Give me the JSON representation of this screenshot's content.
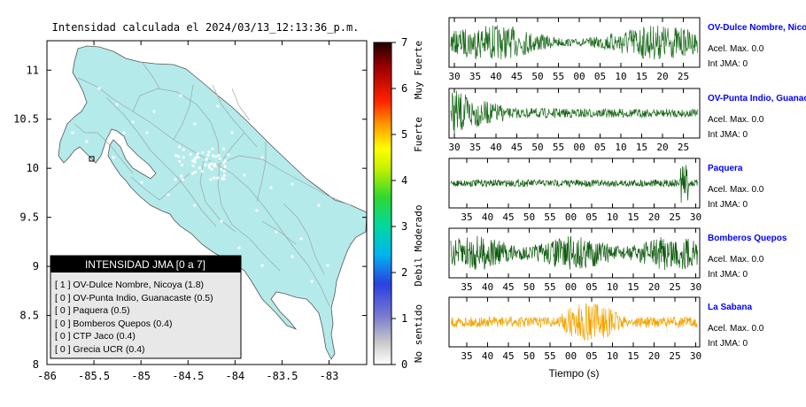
{
  "map": {
    "title": "Intensidad calculada el 2024/03/13_12:13:36_p.m.",
    "x_ticks": [
      "-86",
      "-85.5",
      "-85",
      "-84.5",
      "-84",
      "-83.5",
      "-83"
    ],
    "y_ticks": [
      "11",
      "10.5",
      "10",
      "9.5",
      "9",
      "8.5",
      "8"
    ],
    "land_color": "#b4eaea",
    "legend": {
      "title": "INTENSIDAD JMA [0 a 7]",
      "items": [
        "[ 1 ]  OV-Dulce Nombre, Nicoya (1.8)",
        "[ 0 ]  OV-Punta Indio, Guanacaste (0.5)",
        "[ 0 ]  Paquera (0.5)",
        "[ 0 ]  Bomberos Quepos (0.4)",
        "[ 0 ]  CTP Jaco (0.4)",
        "[ 0 ]  Grecia UCR (0.4)"
      ]
    }
  },
  "colorbar": {
    "ticks": [
      "7",
      "6",
      "5",
      "4",
      "3",
      "2",
      "1",
      "0"
    ],
    "labels": [
      "Muy Fuerte",
      "Fuerte",
      "Moderado",
      "Debil",
      "No sentido"
    ]
  },
  "traces": [
    {
      "station": "OV-Dulce Nombre, Nicoya",
      "acel": "Acel. Max. 0.0",
      "jma": "Int JMA: 0",
      "color": "#1a6a1a",
      "ticks": [
        "30",
        "35",
        "40",
        "45",
        "50",
        "55",
        "00",
        "05",
        "10",
        "15",
        "20",
        "25"
      ]
    },
    {
      "station": "OV-Punta Indio, Guanacaste",
      "acel": "Acel. Max. 0.0",
      "jma": "Int JMA: 0",
      "color": "#1a6a1a",
      "ticks": [
        "30",
        "35",
        "40",
        "45",
        "50",
        "55",
        "00",
        "05",
        "10",
        "15",
        "20",
        "25"
      ]
    },
    {
      "station": "Paquera",
      "acel": "Acel. Max. 0.0",
      "jma": "Int JMA: 0",
      "color": "#0e5a0e",
      "ticks": [
        "35",
        "40",
        "45",
        "50",
        "55",
        "00",
        "05",
        "10",
        "15",
        "20",
        "25",
        "30"
      ]
    },
    {
      "station": "Bomberos Quepos",
      "acel": "Acel. Max. 0.0",
      "jma": "Int JMA: 0",
      "color": "#0e5a0e",
      "ticks": [
        "35",
        "40",
        "45",
        "50",
        "55",
        "00",
        "05",
        "10",
        "15",
        "20",
        "25",
        "30"
      ]
    },
    {
      "station": "La Sabana",
      "acel": "Acel. Max. 0.0",
      "jma": "Int JMA: 0",
      "color": "#f2a400",
      "ticks": [
        "35",
        "40",
        "45",
        "50",
        "55",
        "00",
        "05",
        "10",
        "15",
        "20",
        "25",
        "30"
      ]
    }
  ],
  "xlabel": "Tiempo (s)",
  "station_color": "#0000ff",
  "chart_data": [
    {
      "type": "heatmap",
      "title": "Intensidad calculada el 2024/03/13_12:13:36_p.m.",
      "xlim": [
        -86,
        -82.6
      ],
      "ylim": [
        8,
        11.3
      ],
      "colorbar_range": [
        0,
        7
      ],
      "stations": [
        {
          "name": "OV-Dulce Nombre, Nicoya",
          "intensity": 1.8,
          "jma": 1,
          "lon": -85.48,
          "lat": 10.08
        },
        {
          "name": "OV-Punta Indio, Guanacaste",
          "intensity": 0.5,
          "jma": 0
        },
        {
          "name": "Paquera",
          "intensity": 0.5,
          "jma": 0
        },
        {
          "name": "Bomberos Quepos",
          "intensity": 0.4,
          "jma": 0
        },
        {
          "name": "CTP Jaco",
          "intensity": 0.4,
          "jma": 0
        },
        {
          "name": "Grecia UCR",
          "intensity": 0.4,
          "jma": 0
        }
      ]
    },
    {
      "type": "line",
      "series": [
        {
          "name": "OV-Dulce Nombre, Nicoya",
          "acel_max": 0.0,
          "int_jma": 0
        },
        {
          "name": "OV-Punta Indio, Guanacaste",
          "acel_max": 0.0,
          "int_jma": 0
        },
        {
          "name": "Paquera",
          "acel_max": 0.0,
          "int_jma": 0
        },
        {
          "name": "Bomberos Quepos",
          "acel_max": 0.0,
          "int_jma": 0
        },
        {
          "name": "La Sabana",
          "acel_max": 0.0,
          "int_jma": 0
        }
      ],
      "xlabel": "Tiempo (s)"
    }
  ]
}
